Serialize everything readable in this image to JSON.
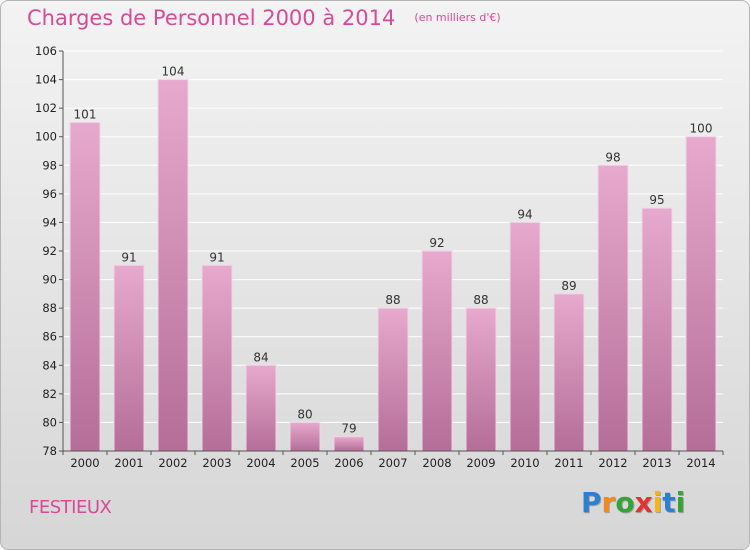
{
  "header": {
    "title": "Charges de Personnel 2000 à 2014",
    "subtitle": "(en milliers d'€)"
  },
  "commune": "FESTIEUX",
  "logo": {
    "letters": [
      "P",
      "r",
      "o",
      "x",
      "i",
      "t",
      "i"
    ],
    "colors": [
      "#2d7fd0",
      "#ef8a1d",
      "#35a335",
      "#e03333",
      "#f2b51c",
      "#2d7fd0",
      "#35a335"
    ]
  },
  "colors": {
    "bar_top": "#e7a9cd",
    "bar_bottom": "#b46e98",
    "accent": "#d84a98",
    "grid": "#ffffff"
  },
  "chart_data": {
    "type": "bar",
    "categories": [
      "2000",
      "2001",
      "2002",
      "2003",
      "2004",
      "2005",
      "2006",
      "2007",
      "2008",
      "2009",
      "2010",
      "2011",
      "2012",
      "2013",
      "2014"
    ],
    "values": [
      101,
      91,
      104,
      91,
      84,
      80,
      79,
      88,
      92,
      88,
      94,
      89,
      98,
      95,
      100
    ],
    "ylim": [
      78,
      106
    ],
    "yticks": [
      78,
      80,
      82,
      84,
      86,
      88,
      90,
      92,
      94,
      96,
      98,
      100,
      102,
      104,
      106
    ],
    "grid": true,
    "data_labels": true
  }
}
